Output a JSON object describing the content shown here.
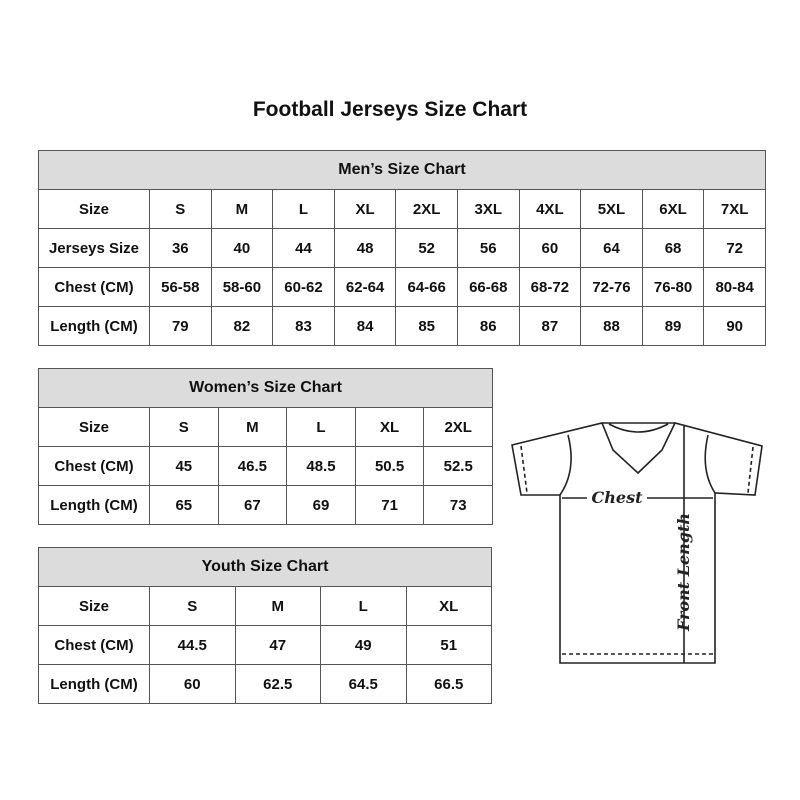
{
  "title": "Football Jerseys Size Chart",
  "tables": [
    {
      "id": "men",
      "title": "Men’s Size Chart",
      "rows": [
        [
          "Size",
          "S",
          "M",
          "L",
          "XL",
          "2XL",
          "3XL",
          "4XL",
          "5XL",
          "6XL",
          "7XL"
        ],
        [
          "Jerseys Size",
          "36",
          "40",
          "44",
          "48",
          "52",
          "56",
          "60",
          "64",
          "68",
          "72"
        ],
        [
          "Chest (CM)",
          "56-58",
          "58-60",
          "60-62",
          "62-64",
          "64-66",
          "66-68",
          "68-72",
          "72-76",
          "76-80",
          "80-84"
        ],
        [
          "Length (CM)",
          "79",
          "82",
          "83",
          "84",
          "85",
          "86",
          "87",
          "88",
          "89",
          "90"
        ]
      ]
    },
    {
      "id": "women",
      "title": "Women’s Size Chart",
      "rows": [
        [
          "Size",
          "S",
          "M",
          "L",
          "XL",
          "2XL"
        ],
        [
          "Chest (CM)",
          "45",
          "46.5",
          "48.5",
          "50.5",
          "52.5"
        ],
        [
          "Length (CM)",
          "65",
          "67",
          "69",
          "71",
          "73"
        ]
      ]
    },
    {
      "id": "youth",
      "title": "Youth Size Chart",
      "rows": [
        [
          "Size",
          "S",
          "M",
          "L",
          "XL"
        ],
        [
          "Chest (CM)",
          "44.5",
          "47",
          "49",
          "51"
        ],
        [
          "Length (CM)",
          "60",
          "62.5",
          "64.5",
          "66.5"
        ]
      ]
    }
  ],
  "diagram": {
    "chest_label": "Chest",
    "length_label": "Front Length"
  }
}
